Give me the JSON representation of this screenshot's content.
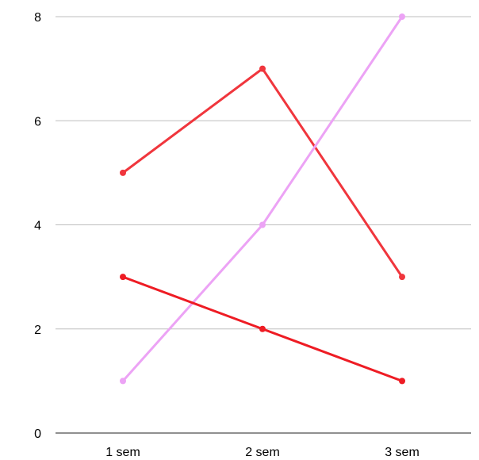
{
  "chart_data": {
    "type": "line",
    "categories": [
      "1 sem",
      "2 sem",
      "3 sem"
    ],
    "series": [
      {
        "values": [
          5,
          7,
          3
        ],
        "color": "#f0363d"
      },
      {
        "values": [
          1,
          4,
          8
        ],
        "color": "#eca3f5"
      },
      {
        "values": [
          3,
          2,
          1
        ],
        "color": "#ee1c24"
      }
    ],
    "title": "",
    "xlabel": "",
    "ylabel": "",
    "ylim": [
      0,
      8
    ],
    "yticks": [
      "0",
      "2",
      "4",
      "6",
      "8"
    ],
    "grid": true,
    "legend": "none"
  }
}
